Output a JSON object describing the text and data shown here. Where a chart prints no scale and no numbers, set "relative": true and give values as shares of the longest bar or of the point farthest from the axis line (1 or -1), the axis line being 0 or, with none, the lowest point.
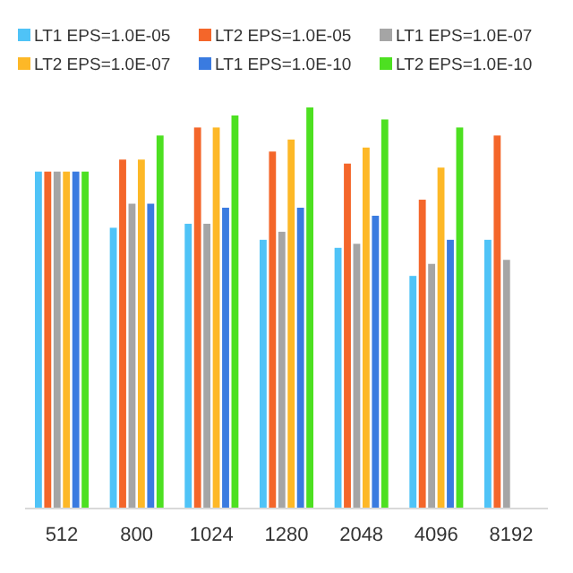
{
  "chart_data": {
    "type": "bar",
    "relative": true,
    "legend": "top",
    "categories": [
      "512",
      "800",
      "1024",
      "1280",
      "2048",
      "4096",
      "8192"
    ],
    "series": [
      {
        "name": "LT1 EPS=1.0E-05",
        "color": "#4fc3f7",
        "values": [
          0.84,
          0.7,
          0.71,
          0.67,
          0.65,
          0.58,
          0.67
        ]
      },
      {
        "name": "LT2 EPS=1.0E-05",
        "color": "#f4662a",
        "values": [
          0.84,
          0.87,
          0.95,
          0.89,
          0.86,
          0.77,
          0.93
        ]
      },
      {
        "name": "LT1 EPS=1.0E-07",
        "color": "#a5a5a5",
        "values": [
          0.84,
          0.76,
          0.71,
          0.69,
          0.66,
          0.61,
          0.62
        ]
      },
      {
        "name": "LT2 EPS=1.0E-07",
        "color": "#fdb827",
        "values": [
          0.84,
          0.87,
          0.95,
          0.92,
          0.9,
          0.85,
          null
        ]
      },
      {
        "name": "LT1 EPS=1.0E-10",
        "color": "#3a7be0",
        "values": [
          0.84,
          0.76,
          0.75,
          0.75,
          0.73,
          0.67,
          null
        ]
      },
      {
        "name": "LT2 EPS=1.0E-10",
        "color": "#4de021",
        "values": [
          0.84,
          0.93,
          0.98,
          1,
          0.97,
          0.95,
          null
        ]
      }
    ]
  }
}
